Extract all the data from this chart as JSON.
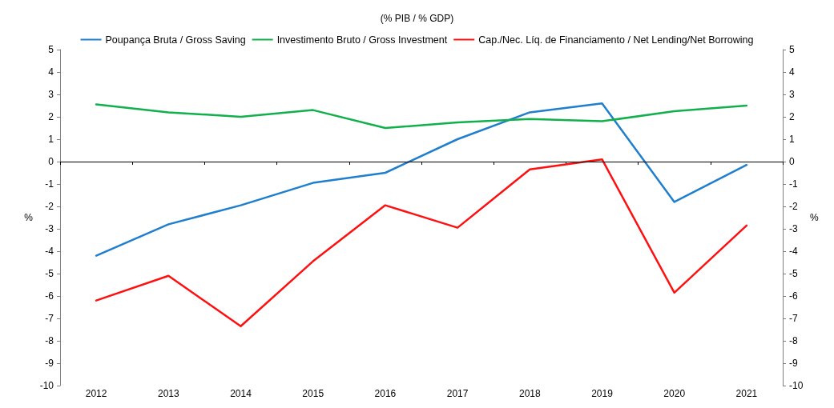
{
  "chart_data": {
    "type": "line",
    "subtitle": "(% PIB / % GDP)",
    "ylabel": "%",
    "y2label": "%",
    "categories": [
      "2012",
      "2013",
      "2014",
      "2015",
      "2016",
      "2017",
      "2018",
      "2019",
      "2020",
      "2021"
    ],
    "series": [
      {
        "name": "Poupança Bruta / Gross Saving",
        "color": "#1f7fce",
        "values": [
          -4.2,
          -2.8,
          -1.95,
          -0.95,
          -0.5,
          1.0,
          2.2,
          2.6,
          -1.8,
          -0.15
        ]
      },
      {
        "name": "Investimento Bruto / Gross Investment",
        "color": "#12b04c",
        "values": [
          2.55,
          2.2,
          2.0,
          2.3,
          1.5,
          1.75,
          1.9,
          1.8,
          2.25,
          2.5
        ]
      },
      {
        "name": "Cap./Nec. Líq. de Financiamento / Net Lending/Net Borrowing",
        "color": "#ff1010",
        "values": [
          -6.2,
          -5.1,
          -7.35,
          -4.45,
          -1.95,
          -2.95,
          -0.35,
          0.1,
          -5.85,
          -2.85
        ]
      }
    ],
    "ylim": [
      -10,
      5
    ],
    "yticks": [
      -10,
      -9,
      -8,
      -7,
      -6,
      -5,
      -4,
      -3,
      -2,
      -1,
      0,
      1,
      2,
      3,
      4,
      5
    ],
    "y2lim": [
      -10,
      5
    ],
    "y2ticks": [
      -10,
      -9,
      -8,
      -7,
      -6,
      -5,
      -4,
      -3,
      -2,
      -1,
      0,
      1,
      2,
      3,
      4,
      5
    ],
    "ref_lines": [
      {
        "axis": "y",
        "value": 0,
        "color": "#000000"
      }
    ],
    "grid": false,
    "legend": "top",
    "marker": "none",
    "line_style": "solid"
  }
}
